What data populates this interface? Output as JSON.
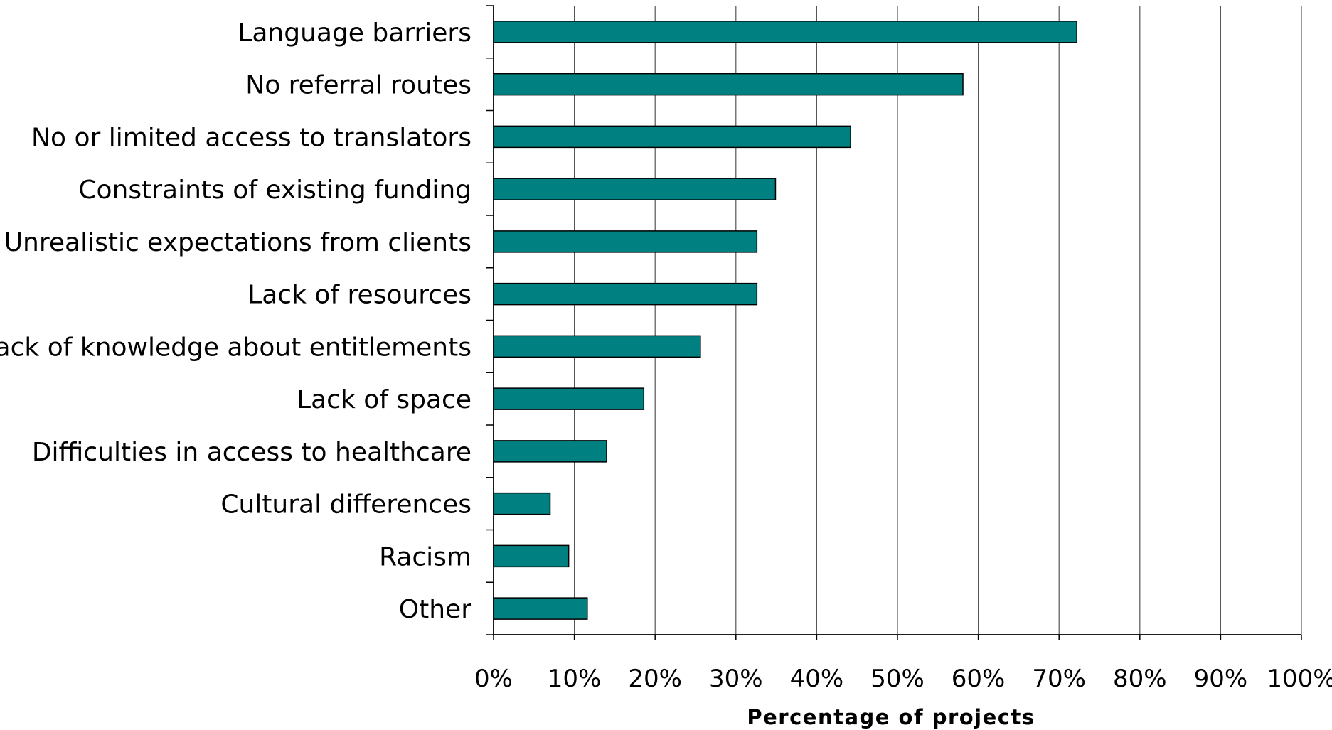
{
  "chart_data": {
    "type": "bar",
    "orientation": "horizontal",
    "categories": [
      "Language barriers",
      "No referral routes",
      "No or limited access to translators",
      "Constraints of existing funding",
      "Unrealistic expectations from clients",
      "Lack of resources",
      "Lack of knowledge about entitlements",
      "Lack of space",
      "Difficulties in access to healthcare",
      "Cultural differences",
      "Racism",
      "Other"
    ],
    "values": [
      72.2,
      58.1,
      44.2,
      34.9,
      32.6,
      32.6,
      25.6,
      18.6,
      14.0,
      7.0,
      9.3,
      11.6
    ],
    "xlabel": "Percentage of projects",
    "ylabel": "",
    "title": "",
    "xlim": [
      0,
      100
    ],
    "x_ticks": [
      "0%",
      "10%",
      "20%",
      "30%",
      "40%",
      "50%",
      "60%",
      "70%",
      "80%",
      "90%",
      "100%"
    ],
    "grid": "vertical",
    "bar_color": "#008080",
    "bar_edge_color": "#000000"
  }
}
